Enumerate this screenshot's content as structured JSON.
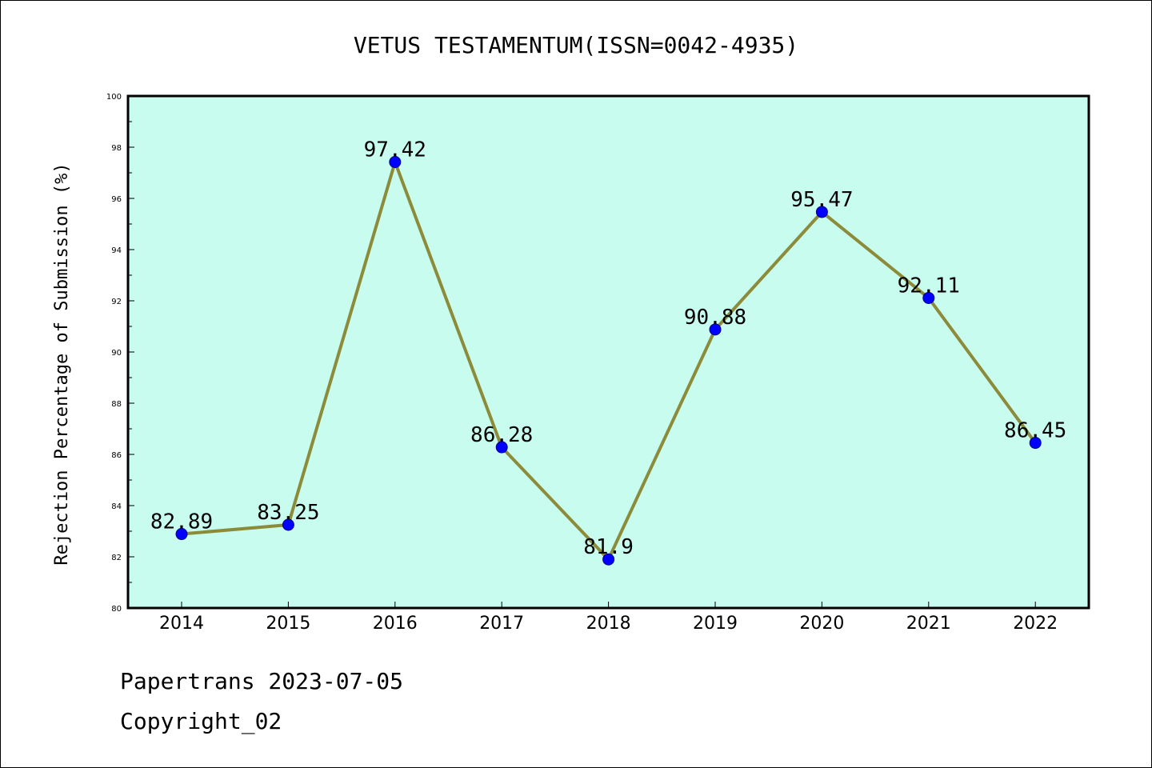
{
  "chart_data": {
    "type": "line",
    "title": "VETUS TESTAMENTUM(ISSN=0042-4935)",
    "xlabel": "",
    "ylabel": "Rejection Percentage of Submission (%)",
    "categories": [
      "2014",
      "2015",
      "2016",
      "2017",
      "2018",
      "2019",
      "2020",
      "2021",
      "2022"
    ],
    "values": [
      82.89,
      83.25,
      97.42,
      86.28,
      81.9,
      90.88,
      95.47,
      92.11,
      86.45
    ],
    "data_labels": [
      "82.89",
      "83.25",
      "97.42",
      "86.28",
      "81.9",
      "90.88",
      "95.47",
      "92.11",
      "86.45"
    ],
    "ylim": [
      80,
      100
    ],
    "yticks": [
      "80",
      "82",
      "84",
      "86",
      "88",
      "90",
      "92",
      "94",
      "96",
      "98",
      "100"
    ],
    "grid": false,
    "legend": "none",
    "colors": {
      "plot_background": "#c8fcee",
      "line": "#8b8b3a",
      "marker": "#0000ff",
      "axis": "#000000"
    }
  },
  "footer": {
    "line1": "Papertrans 2023-07-05",
    "line2": "Copyright_02"
  }
}
